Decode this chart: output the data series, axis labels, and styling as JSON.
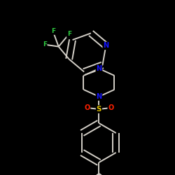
{
  "background_color": "#000000",
  "bond_color": "#d4d0c8",
  "atom_colors": {
    "N": "#1414ff",
    "O": "#ff2000",
    "S": "#e0c000",
    "F": "#2ecc40",
    "C": "#d4d0c8"
  },
  "figsize": [
    2.5,
    2.5
  ],
  "dpi": 100,
  "xlim": [
    0,
    250
  ],
  "ylim": [
    0,
    250
  ]
}
